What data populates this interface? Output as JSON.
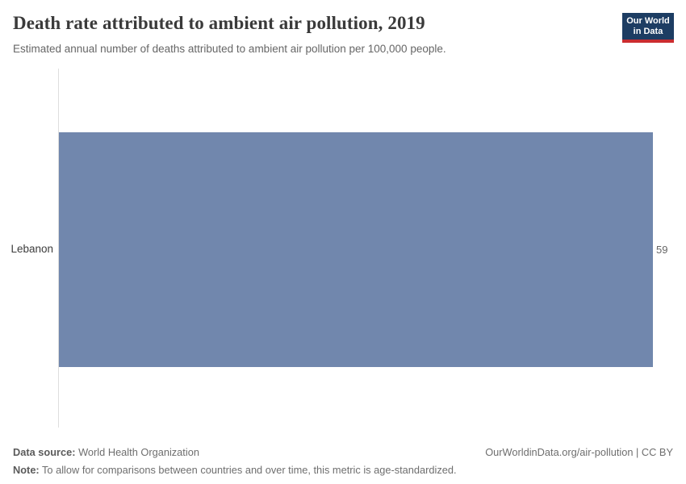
{
  "header": {
    "title": "Death rate attributed to ambient air pollution, 2019",
    "subtitle": "Estimated annual number of deaths attributed to ambient air pollution per 100,000 people.",
    "logo": {
      "line1": "Our World",
      "line2": "in Data"
    }
  },
  "chart_data": {
    "type": "bar",
    "orientation": "horizontal",
    "title": "Death rate attributed to ambient air pollution, 2019",
    "categories": [
      "Lebanon"
    ],
    "values": [
      59
    ],
    "value_labels": [
      "59"
    ],
    "xlabel": "",
    "ylabel": "",
    "xlim": [
      0,
      59
    ],
    "grid": false,
    "legend": "none",
    "bar_color": "#7187ad",
    "axis_line_color": "#dedede"
  },
  "footer": {
    "datasource_label": "Data source:",
    "datasource_value": " World Health Organization",
    "link_text": "OurWorldinData.org/air-pollution | CC BY",
    "note_label": "Note:",
    "note_value": " To allow for comparisons between countries and over time, this metric is age-standardized."
  },
  "colors": {
    "bar": "#7187ad",
    "logo_background": "#1d3d63",
    "logo_underline": "#cb2d30",
    "title_text": "#3a3a3a",
    "muted_text": "#666666"
  }
}
